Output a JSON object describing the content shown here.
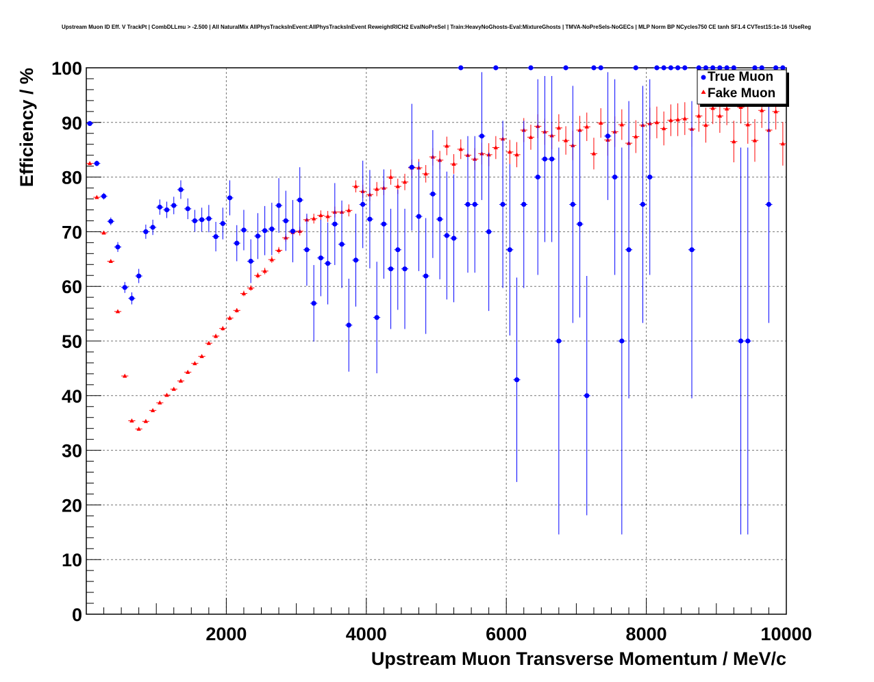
{
  "chart_data": {
    "type": "scatter",
    "title": "Upstream Muon ID Eff. V TrackPt | CombDLLmu > -2.500 | All NaturalMix AllPhysTracksInEvent:AllPhysTracksInEvent ReweightRICH2 EvalNoPreSel | Train:HeavyNoGhosts-Eval:MixtureGhosts | TMVA-NoPreSels-NoGECs | MLP Norm BP NCycles750 CE tanh SF1.4 CVTest15:1e-16 !UseReg",
    "xlabel": "Upstream Muon Transverse Momentum / MeV/c",
    "ylabel": "Efficiency / %",
    "xlim": [
      0,
      10000
    ],
    "ylim": [
      0,
      100
    ],
    "x_ticks": [
      2000,
      4000,
      6000,
      8000,
      10000
    ],
    "y_ticks": [
      0,
      10,
      20,
      30,
      40,
      50,
      60,
      70,
      80,
      90,
      100
    ],
    "grid": true,
    "legend_position": "top-right",
    "series": [
      {
        "name": "True Muon",
        "color": "#0000ff",
        "marker": "circle",
        "points": [
          {
            "x": 50,
            "y": 89.8,
            "err": 0.4
          },
          {
            "x": 150,
            "y": 82.5,
            "err": 0.5
          },
          {
            "x": 250,
            "y": 76.5,
            "err": 0.6
          },
          {
            "x": 350,
            "y": 71.9,
            "err": 0.7
          },
          {
            "x": 450,
            "y": 67.2,
            "err": 0.9
          },
          {
            "x": 550,
            "y": 59.8,
            "err": 1.0
          },
          {
            "x": 650,
            "y": 57.8,
            "err": 1.1
          },
          {
            "x": 750,
            "y": 61.9,
            "err": 1.3
          },
          {
            "x": 850,
            "y": 70.0,
            "err": 1.3
          },
          {
            "x": 950,
            "y": 70.8,
            "err": 1.4
          },
          {
            "x": 1050,
            "y": 74.5,
            "err": 1.4
          },
          {
            "x": 1150,
            "y": 74.0,
            "err": 1.5
          },
          {
            "x": 1250,
            "y": 74.8,
            "err": 1.6
          },
          {
            "x": 1350,
            "y": 77.7,
            "err": 1.7
          },
          {
            "x": 1450,
            "y": 74.2,
            "err": 1.9
          },
          {
            "x": 1550,
            "y": 72.0,
            "err": 2.0
          },
          {
            "x": 1650,
            "y": 72.2,
            "err": 2.2
          },
          {
            "x": 1750,
            "y": 72.4,
            "err": 2.5
          },
          {
            "x": 1850,
            "y": 69.1,
            "err": 2.7
          },
          {
            "x": 1950,
            "y": 71.5,
            "err": 2.9
          },
          {
            "x": 2050,
            "y": 76.2,
            "err": 3.2
          },
          {
            "x": 2150,
            "y": 67.9,
            "err": 3.3
          },
          {
            "x": 2250,
            "y": 70.3,
            "err": 3.7
          },
          {
            "x": 2350,
            "y": 64.6,
            "err": 4.0
          },
          {
            "x": 2450,
            "y": 69.2,
            "err": 4.2
          },
          {
            "x": 2550,
            "y": 70.2,
            "err": 4.5
          },
          {
            "x": 2650,
            "y": 70.5,
            "err": 4.8
          },
          {
            "x": 2750,
            "y": 74.8,
            "err": 5.0
          },
          {
            "x": 2850,
            "y": 72.0,
            "err": 5.5
          },
          {
            "x": 2950,
            "y": 70.1,
            "err": 5.7
          },
          {
            "x": 3050,
            "y": 75.8,
            "err": 6.0
          },
          {
            "x": 3150,
            "y": 66.7,
            "err": 6.6
          },
          {
            "x": 3250,
            "y": 56.9,
            "err": 7.0
          },
          {
            "x": 3350,
            "y": 65.2,
            "err": 7.0
          },
          {
            "x": 3450,
            "y": 64.2,
            "err": 7.5
          },
          {
            "x": 3550,
            "y": 71.4,
            "err": 7.5
          },
          {
            "x": 3650,
            "y": 67.7,
            "err": 8.0
          },
          {
            "x": 3750,
            "y": 52.9,
            "err": 8.5
          },
          {
            "x": 3850,
            "y": 64.8,
            "err": 8.5
          },
          {
            "x": 3950,
            "y": 75.0,
            "err": 8.0
          },
          {
            "x": 4050,
            "y": 72.3,
            "err": 9.0
          },
          {
            "x": 4150,
            "y": 54.3,
            "err": 10.2
          },
          {
            "x": 4250,
            "y": 71.4,
            "err": 10.0
          },
          {
            "x": 4350,
            "y": 63.2,
            "err": 11.0
          },
          {
            "x": 4450,
            "y": 66.7,
            "err": 11.0
          },
          {
            "x": 4550,
            "y": 63.2,
            "err": 11.0
          },
          {
            "x": 4650,
            "y": 81.8,
            "err": 11.6
          },
          {
            "x": 4750,
            "y": 72.8,
            "err": 10.0
          },
          {
            "x": 4850,
            "y": 61.9,
            "err": 10.6
          },
          {
            "x": 4950,
            "y": 76.9,
            "err": 11.7
          },
          {
            "x": 5050,
            "y": 72.3,
            "err": 11.0
          },
          {
            "x": 5150,
            "y": 69.3,
            "err": 11.7
          },
          {
            "x": 5250,
            "y": 68.8,
            "err": 11.7
          },
          {
            "x": 5350,
            "y": 100.0,
            "err": 0
          },
          {
            "x": 5450,
            "y": 75.0,
            "err": 12.5
          },
          {
            "x": 5550,
            "y": 75.0,
            "err": 12.5
          },
          {
            "x": 5650,
            "y": 87.5,
            "err": 11.7
          },
          {
            "x": 5750,
            "y": 70.0,
            "err": 14.5
          },
          {
            "x": 5850,
            "y": 100.0,
            "err": 0
          },
          {
            "x": 5950,
            "y": 75.0,
            "err": 15.3
          },
          {
            "x": 6050,
            "y": 66.7,
            "err": 15.7
          },
          {
            "x": 6150,
            "y": 42.9,
            "err": 18.7
          },
          {
            "x": 6250,
            "y": 75.0,
            "err": 15.3
          },
          {
            "x": 6350,
            "y": 100.0,
            "err": 0
          },
          {
            "x": 6450,
            "y": 80.0,
            "err": 17.9
          },
          {
            "x": 6550,
            "y": 83.3,
            "err": 15.2
          },
          {
            "x": 6650,
            "y": 83.3,
            "err": 15.2
          },
          {
            "x": 6750,
            "y": 50.0,
            "err": 35.4
          },
          {
            "x": 6850,
            "y": 100.0,
            "err": 0
          },
          {
            "x": 6950,
            "y": 75.0,
            "err": 21.7
          },
          {
            "x": 7050,
            "y": 71.4,
            "err": 17.1
          },
          {
            "x": 7150,
            "y": 40.0,
            "err": 21.9
          },
          {
            "x": 7250,
            "y": 100.0,
            "err": 0
          },
          {
            "x": 7350,
            "y": 100.0,
            "err": 0
          },
          {
            "x": 7450,
            "y": 87.5,
            "err": 11.7
          },
          {
            "x": 7550,
            "y": 80.0,
            "err": 17.9
          },
          {
            "x": 7650,
            "y": 50.0,
            "err": 35.4
          },
          {
            "x": 7750,
            "y": 66.7,
            "err": 27.2
          },
          {
            "x": 7850,
            "y": 100.0,
            "err": 0
          },
          {
            "x": 7950,
            "y": 75.0,
            "err": 21.7
          },
          {
            "x": 8050,
            "y": 80.0,
            "err": 17.9
          },
          {
            "x": 8150,
            "y": 100.0,
            "err": 0
          },
          {
            "x": 8250,
            "y": 100.0,
            "err": 0
          },
          {
            "x": 8350,
            "y": 100.0,
            "err": 0
          },
          {
            "x": 8450,
            "y": 100.0,
            "err": 0
          },
          {
            "x": 8550,
            "y": 100.0,
            "err": 0
          },
          {
            "x": 8650,
            "y": 66.7,
            "err": 27.2
          },
          {
            "x": 8750,
            "y": 100.0,
            "err": 0
          },
          {
            "x": 8850,
            "y": 100.0,
            "err": 0
          },
          {
            "x": 8950,
            "y": 100.0,
            "err": 0
          },
          {
            "x": 9050,
            "y": 100.0,
            "err": 0
          },
          {
            "x": 9150,
            "y": 100.0,
            "err": 0
          },
          {
            "x": 9250,
            "y": 100.0,
            "err": 0
          },
          {
            "x": 9350,
            "y": 50.0,
            "err": 35.4
          },
          {
            "x": 9450,
            "y": 50.0,
            "err": 35.4
          },
          {
            "x": 9550,
            "y": 100.0,
            "err": 0
          },
          {
            "x": 9650,
            "y": 100.0,
            "err": 0
          },
          {
            "x": 9750,
            "y": 75.0,
            "err": 21.7
          },
          {
            "x": 9850,
            "y": 100.0,
            "err": 0
          },
          {
            "x": 9950,
            "y": 100.0,
            "err": 0
          }
        ]
      },
      {
        "name": "Fake Muon",
        "color": "#ff0000",
        "marker": "triangle",
        "points": [
          {
            "x": 50,
            "y": 82.5,
            "err": 0.2
          },
          {
            "x": 150,
            "y": 76.3,
            "err": 0.2
          },
          {
            "x": 250,
            "y": 69.8,
            "err": 0.2
          },
          {
            "x": 350,
            "y": 64.6,
            "err": 0.2
          },
          {
            "x": 450,
            "y": 55.4,
            "err": 0.2
          },
          {
            "x": 550,
            "y": 43.6,
            "err": 0.2
          },
          {
            "x": 650,
            "y": 35.4,
            "err": 0.2
          },
          {
            "x": 750,
            "y": 33.9,
            "err": 0.2
          },
          {
            "x": 850,
            "y": 35.3,
            "err": 0.2
          },
          {
            "x": 950,
            "y": 37.3,
            "err": 0.2
          },
          {
            "x": 1050,
            "y": 38.7,
            "err": 0.2
          },
          {
            "x": 1150,
            "y": 40.1,
            "err": 0.2
          },
          {
            "x": 1250,
            "y": 41.2,
            "err": 0.2
          },
          {
            "x": 1350,
            "y": 42.7,
            "err": 0.3
          },
          {
            "x": 1450,
            "y": 44.3,
            "err": 0.3
          },
          {
            "x": 1550,
            "y": 45.9,
            "err": 0.3
          },
          {
            "x": 1650,
            "y": 47.2,
            "err": 0.3
          },
          {
            "x": 1750,
            "y": 49.6,
            "err": 0.3
          },
          {
            "x": 1850,
            "y": 50.9,
            "err": 0.4
          },
          {
            "x": 1950,
            "y": 52.3,
            "err": 0.4
          },
          {
            "x": 2050,
            "y": 54.2,
            "err": 0.4
          },
          {
            "x": 2150,
            "y": 55.6,
            "err": 0.4
          },
          {
            "x": 2250,
            "y": 58.7,
            "err": 0.5
          },
          {
            "x": 2350,
            "y": 59.7,
            "err": 0.5
          },
          {
            "x": 2450,
            "y": 62.0,
            "err": 0.5
          },
          {
            "x": 2550,
            "y": 62.8,
            "err": 0.6
          },
          {
            "x": 2650,
            "y": 64.9,
            "err": 0.6
          },
          {
            "x": 2750,
            "y": 66.6,
            "err": 0.6
          },
          {
            "x": 2850,
            "y": 68.9,
            "err": 0.7
          },
          {
            "x": 2950,
            "y": 69.9,
            "err": 0.7
          },
          {
            "x": 3050,
            "y": 70.1,
            "err": 0.8
          },
          {
            "x": 3150,
            "y": 72.2,
            "err": 0.8
          },
          {
            "x": 3250,
            "y": 72.4,
            "err": 0.9
          },
          {
            "x": 3350,
            "y": 73.0,
            "err": 0.9
          },
          {
            "x": 3450,
            "y": 72.8,
            "err": 1.0
          },
          {
            "x": 3550,
            "y": 73.6,
            "err": 1.0
          },
          {
            "x": 3650,
            "y": 73.6,
            "err": 1.1
          },
          {
            "x": 3750,
            "y": 73.9,
            "err": 1.1
          },
          {
            "x": 3850,
            "y": 78.3,
            "err": 1.1
          },
          {
            "x": 3950,
            "y": 77.4,
            "err": 1.2
          },
          {
            "x": 4050,
            "y": 76.8,
            "err": 1.2
          },
          {
            "x": 4150,
            "y": 77.8,
            "err": 1.3
          },
          {
            "x": 4250,
            "y": 78.0,
            "err": 1.3
          },
          {
            "x": 4350,
            "y": 80.0,
            "err": 1.4
          },
          {
            "x": 4450,
            "y": 78.3,
            "err": 1.4
          },
          {
            "x": 4550,
            "y": 79.1,
            "err": 1.5
          },
          {
            "x": 4650,
            "y": 81.7,
            "err": 1.5
          },
          {
            "x": 4750,
            "y": 81.7,
            "err": 1.6
          },
          {
            "x": 4850,
            "y": 80.6,
            "err": 1.6
          },
          {
            "x": 4950,
            "y": 83.7,
            "err": 1.6
          },
          {
            "x": 5050,
            "y": 83.1,
            "err": 1.7
          },
          {
            "x": 5150,
            "y": 85.7,
            "err": 1.7
          },
          {
            "x": 5250,
            "y": 82.4,
            "err": 1.8
          },
          {
            "x": 5350,
            "y": 85.1,
            "err": 1.8
          },
          {
            "x": 5450,
            "y": 84.0,
            "err": 1.9
          },
          {
            "x": 5550,
            "y": 83.3,
            "err": 2.0
          },
          {
            "x": 5650,
            "y": 84.3,
            "err": 2.0
          },
          {
            "x": 5750,
            "y": 84.1,
            "err": 2.1
          },
          {
            "x": 5850,
            "y": 85.4,
            "err": 2.1
          },
          {
            "x": 5950,
            "y": 87.0,
            "err": 2.1
          },
          {
            "x": 6050,
            "y": 84.6,
            "err": 2.2
          },
          {
            "x": 6150,
            "y": 84.1,
            "err": 2.3
          },
          {
            "x": 6250,
            "y": 88.6,
            "err": 2.2
          },
          {
            "x": 6350,
            "y": 87.3,
            "err": 2.3
          },
          {
            "x": 6450,
            "y": 89.3,
            "err": 2.2
          },
          {
            "x": 6550,
            "y": 88.3,
            "err": 2.4
          },
          {
            "x": 6650,
            "y": 87.6,
            "err": 2.5
          },
          {
            "x": 6750,
            "y": 89.0,
            "err": 2.5
          },
          {
            "x": 6850,
            "y": 86.7,
            "err": 2.6
          },
          {
            "x": 6950,
            "y": 85.8,
            "err": 2.7
          },
          {
            "x": 7050,
            "y": 88.6,
            "err": 2.6
          },
          {
            "x": 7150,
            "y": 89.2,
            "err": 2.6
          },
          {
            "x": 7250,
            "y": 84.3,
            "err": 2.9
          },
          {
            "x": 7350,
            "y": 89.9,
            "err": 2.7
          },
          {
            "x": 7450,
            "y": 86.8,
            "err": 2.9
          },
          {
            "x": 7550,
            "y": 88.3,
            "err": 2.8
          },
          {
            "x": 7650,
            "y": 89.6,
            "err": 2.8
          },
          {
            "x": 7750,
            "y": 86.2,
            "err": 3.0
          },
          {
            "x": 7850,
            "y": 87.4,
            "err": 3.0
          },
          {
            "x": 7950,
            "y": 89.5,
            "err": 2.9
          },
          {
            "x": 8050,
            "y": 89.8,
            "err": 2.9
          },
          {
            "x": 8150,
            "y": 90.0,
            "err": 2.9
          },
          {
            "x": 8250,
            "y": 88.9,
            "err": 3.1
          },
          {
            "x": 8350,
            "y": 90.4,
            "err": 2.9
          },
          {
            "x": 8450,
            "y": 90.5,
            "err": 3.0
          },
          {
            "x": 8550,
            "y": 90.7,
            "err": 3.0
          },
          {
            "x": 8650,
            "y": 88.8,
            "err": 3.3
          },
          {
            "x": 8750,
            "y": 91.2,
            "err": 2.9
          },
          {
            "x": 8850,
            "y": 89.5,
            "err": 3.2
          },
          {
            "x": 8950,
            "y": 92.6,
            "err": 2.9
          },
          {
            "x": 9050,
            "y": 91.2,
            "err": 3.1
          },
          {
            "x": 9150,
            "y": 92.5,
            "err": 3.0
          },
          {
            "x": 9250,
            "y": 86.5,
            "err": 3.8
          },
          {
            "x": 9350,
            "y": 92.8,
            "err": 3.0
          },
          {
            "x": 9450,
            "y": 89.6,
            "err": 3.5
          },
          {
            "x": 9550,
            "y": 86.7,
            "err": 3.9
          },
          {
            "x": 9650,
            "y": 92.2,
            "err": 3.2
          },
          {
            "x": 9750,
            "y": 88.6,
            "err": 3.7
          },
          {
            "x": 9850,
            "y": 92.0,
            "err": 3.3
          },
          {
            "x": 9950,
            "y": 86.1,
            "err": 4.0
          }
        ]
      }
    ]
  }
}
